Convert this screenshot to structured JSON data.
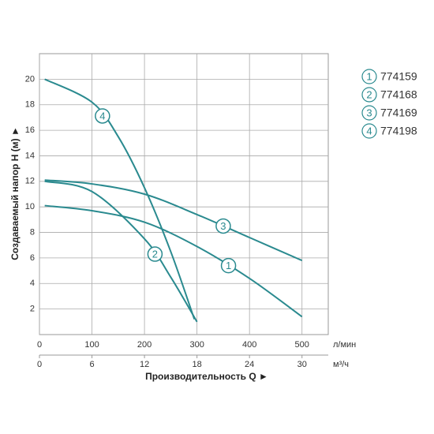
{
  "chart_data": {
    "type": "line",
    "y_label": "Создаваемый напор H (м) ►",
    "x_label": "Производительность Q ►",
    "x_unit": "л/мин",
    "x2_unit": "м³/ч",
    "xlim": [
      0,
      550
    ],
    "xticks": [
      0,
      100,
      200,
      300,
      400,
      500
    ],
    "x2lim": [
      0,
      33
    ],
    "x2ticks": [
      0,
      6,
      12,
      18,
      24,
      30
    ],
    "ylim": [
      0,
      22
    ],
    "yticks": [
      2,
      4,
      6,
      8,
      10,
      12,
      14,
      16,
      18,
      20
    ],
    "grid": true,
    "series": [
      {
        "marker": "1",
        "name": "774159",
        "color": "#2a8a8f",
        "x": [
          10,
          100,
          200,
          300,
          400,
          500
        ],
        "values": [
          10.1,
          9.7,
          8.8,
          6.9,
          4.4,
          1.4
        ]
      },
      {
        "marker": "2",
        "name": "774168",
        "color": "#2a8a8f",
        "x": [
          10,
          100,
          200,
          250,
          300
        ],
        "values": [
          12,
          11.2,
          7.5,
          4.5,
          1
        ]
      },
      {
        "marker": "3",
        "name": "774169",
        "color": "#2a8a8f",
        "x": [
          10,
          100,
          200,
          300,
          400,
          500
        ],
        "values": [
          12.1,
          11.8,
          11.0,
          9.4,
          7.6,
          5.8
        ]
      },
      {
        "marker": "4",
        "name": "774198",
        "color": "#2a8a8f",
        "x": [
          10,
          100,
          150,
          200,
          250,
          295
        ],
        "values": [
          20,
          18.2,
          15.5,
          11.5,
          6.5,
          1.2
        ]
      }
    ]
  }
}
